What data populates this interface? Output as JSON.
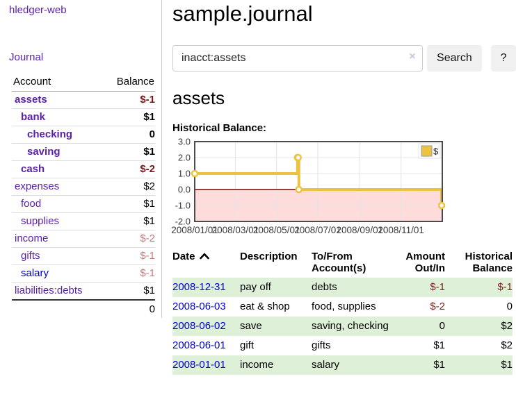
{
  "sidebar": {
    "brand": "hledger-web",
    "nav": [
      {
        "label": "Journal"
      }
    ],
    "accounts_table": {
      "headers": {
        "account": "Account",
        "balance": "Balance"
      },
      "rows": [
        {
          "name": "assets",
          "depth": 0,
          "bold": true,
          "balance": "$-1",
          "balance_style": "neg-strong"
        },
        {
          "name": "bank",
          "depth": 1,
          "bold": true,
          "balance": "$1",
          "balance_style": "plain"
        },
        {
          "name": "checking",
          "depth": 2,
          "bold": true,
          "balance": "0",
          "balance_style": "plain"
        },
        {
          "name": "saving",
          "depth": 2,
          "bold": true,
          "balance": "$1",
          "balance_style": "plain"
        },
        {
          "name": "cash",
          "depth": 1,
          "bold": true,
          "balance": "$-2",
          "balance_style": "neg-strong"
        },
        {
          "name": "expenses",
          "depth": 0,
          "bold": false,
          "balance": "$2",
          "balance_style": "plain"
        },
        {
          "name": "food",
          "depth": 1,
          "bold": false,
          "balance": "$1",
          "balance_style": "plain"
        },
        {
          "name": "supplies",
          "depth": 1,
          "bold": false,
          "balance": "$1",
          "balance_style": "plain"
        },
        {
          "name": "income",
          "depth": 0,
          "bold": false,
          "balance": "$-2",
          "balance_style": "neg-soft"
        },
        {
          "name": "gifts",
          "depth": 1,
          "bold": false,
          "balance": "$-1",
          "balance_style": "neg-soft"
        },
        {
          "name": "salary",
          "depth": 1,
          "bold": false,
          "balance": "$-1",
          "balance_style": "neg-soft",
          "link_style": "blue"
        },
        {
          "name": "liabilities:debts",
          "depth": 0,
          "bold": false,
          "balance": "$1",
          "balance_style": "plain"
        }
      ],
      "total": "0"
    }
  },
  "header": {
    "title": "sample.journal"
  },
  "search": {
    "value": "inacct:assets",
    "clear_label": "×",
    "button_label": "Search",
    "help_label": "?"
  },
  "account_page": {
    "heading": "assets",
    "chart_title": "Historical Balance:"
  },
  "chart_data": {
    "type": "line",
    "step": true,
    "series": [
      {
        "name": "$",
        "color": "#edc240",
        "points": [
          [
            "2008-01-01",
            1
          ],
          [
            "2008-06-01",
            2
          ],
          [
            "2008-06-02",
            2
          ],
          [
            "2008-06-03",
            0
          ],
          [
            "2008-12-31",
            -1
          ]
        ]
      }
    ],
    "x_range": [
      "2008-01-01",
      "2009-01-01"
    ],
    "y_range": [
      -2,
      3
    ],
    "x_ticks": [
      {
        "date": "2008-01-01",
        "label": "2008/01/01"
      },
      {
        "date": "2008-03-01",
        "label": "2008/03/01"
      },
      {
        "date": "2008-05-01",
        "label": "2008/05/01"
      },
      {
        "date": "2008-07-01",
        "label": "2008/07/01"
      },
      {
        "date": "2008-09-01",
        "label": "2008/09/01"
      },
      {
        "date": "2008-11-01",
        "label": "2008/11/01"
      }
    ],
    "y_ticks": [
      {
        "v": 3,
        "label": "3.0"
      },
      {
        "v": 2,
        "label": "2.0"
      },
      {
        "v": 1,
        "label": "1.0"
      },
      {
        "v": 0,
        "label": "0.0"
      },
      {
        "v": -1,
        "label": "-1.0"
      },
      {
        "v": -2,
        "label": "-2.0"
      }
    ],
    "grid": true,
    "negative_region_color": "#ffdcdc",
    "zero_line_color": "#7a0000",
    "border_color": "#4a4a4a",
    "legend": {
      "position": "top-right",
      "label": "$",
      "swatch_color": "#edc240"
    }
  },
  "transactions": {
    "columns": [
      {
        "lines": [
          "Date"
        ],
        "align": "left",
        "sort": "asc"
      },
      {
        "lines": [
          "Description"
        ],
        "align": "left"
      },
      {
        "lines": [
          "To/From",
          "Account(s)"
        ],
        "align": "left"
      },
      {
        "lines": [
          "Amount",
          "Out/In"
        ],
        "align": "right"
      },
      {
        "lines": [
          "Historical",
          "Balance"
        ],
        "align": "right"
      }
    ],
    "rows": [
      {
        "date": "2008-12-31",
        "description": "pay off",
        "accounts": "debts",
        "amount": "$-1",
        "amount_negative": true,
        "balance": "$-1",
        "balance_negative": true,
        "highlight": true
      },
      {
        "date": "2008-06-03",
        "description": "eat & shop",
        "accounts": "food, supplies",
        "amount": "$-2",
        "amount_negative": true,
        "balance": "0",
        "balance_negative": false,
        "highlight": false
      },
      {
        "date": "2008-06-02",
        "description": "save",
        "accounts": "saving, checking",
        "amount": "0",
        "amount_negative": false,
        "balance": "$2",
        "balance_negative": false,
        "highlight": true
      },
      {
        "date": "2008-06-01",
        "description": "gift",
        "accounts": "gifts",
        "amount": "$1",
        "amount_negative": false,
        "balance": "$2",
        "balance_negative": false,
        "highlight": false
      },
      {
        "date": "2008-01-01",
        "description": "income",
        "accounts": "salary",
        "amount": "$1",
        "amount_negative": false,
        "balance": "$1",
        "balance_negative": false,
        "highlight": true
      }
    ]
  },
  "colors": {
    "link_purple": "#5b21a8",
    "link_blue": "#0000cc",
    "negative_strong": "#7d1414",
    "negative_soft": "#c5797c",
    "row_highlight_green": "#dff0d8",
    "chart_gold": "#edc240"
  }
}
